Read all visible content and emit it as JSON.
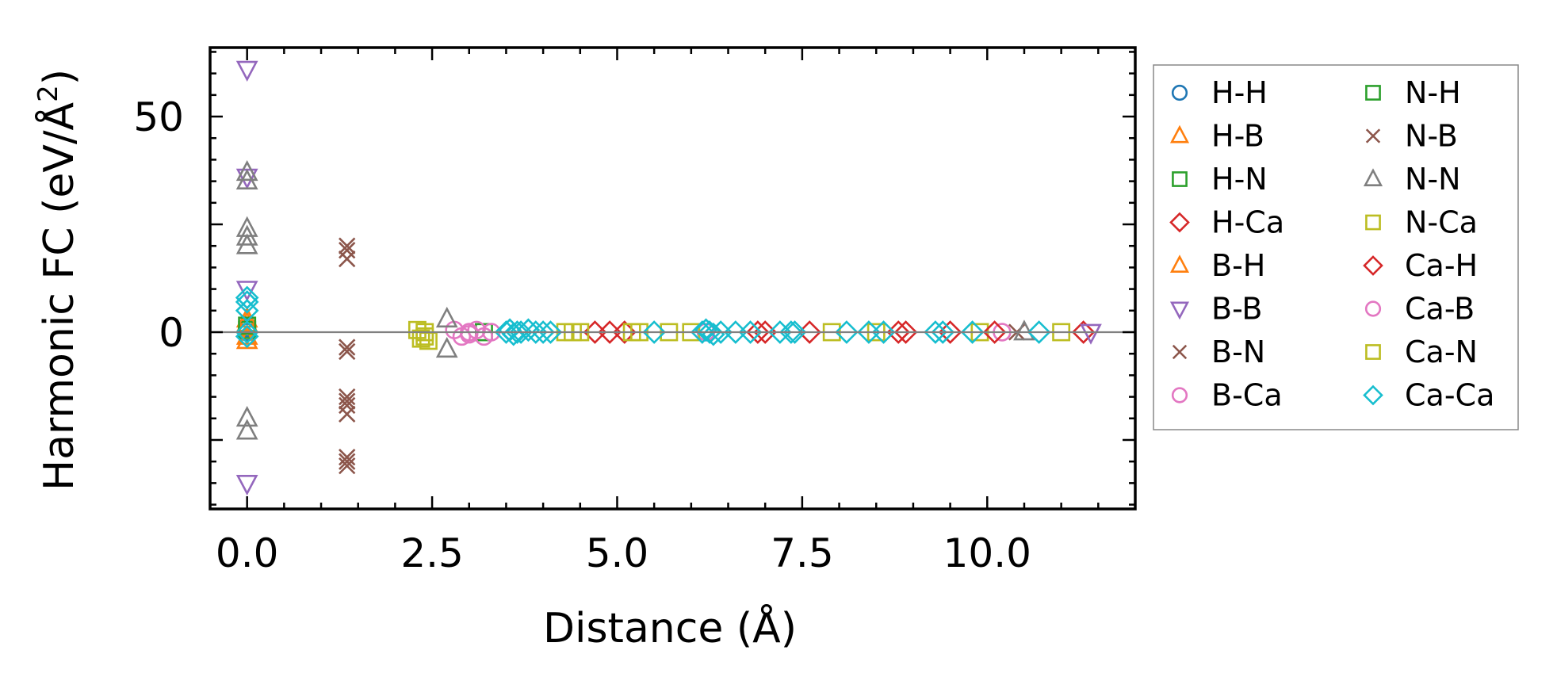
{
  "chart_data": {
    "type": "scatter",
    "title": "",
    "xlabel": "Distance (Å)",
    "ylabel_main": "Harmonic FC (eV/Å",
    "ylabel_sup": "2",
    "ylabel_close": ")",
    "xlim": [
      -0.5,
      12.0
    ],
    "ylim": [
      -41,
      66
    ],
    "x_ticks": [
      0.0,
      2.5,
      5.0,
      7.5,
      10.0
    ],
    "x_tick_labels": [
      "0.0",
      "2.5",
      "5.0",
      "7.5",
      "10.0"
    ],
    "y_ticks": [
      0,
      50
    ],
    "y_tick_labels": [
      "0",
      "50"
    ],
    "zero_line": true,
    "legend_position": "right",
    "series": [
      {
        "name": "H-H",
        "marker": "circle",
        "color": "#1f77b4",
        "points": [
          [
            0,
            0
          ],
          [
            0,
            1
          ]
        ]
      },
      {
        "name": "H-B",
        "marker": "triangle-up",
        "color": "#ff7f0e",
        "points": [
          [
            0,
            2
          ],
          [
            0,
            -1
          ]
        ]
      },
      {
        "name": "H-N",
        "marker": "square",
        "color": "#2ca02c",
        "points": [
          [
            0,
            0.5
          ],
          [
            3.2,
            0
          ]
        ]
      },
      {
        "name": "H-Ca",
        "marker": "diamond",
        "color": "#d62728",
        "points": [
          [
            4.7,
            0
          ],
          [
            5.1,
            0
          ],
          [
            7.0,
            0
          ],
          [
            7.6,
            0
          ],
          [
            8.8,
            0
          ],
          [
            9.5,
            0
          ],
          [
            11.3,
            0
          ]
        ]
      },
      {
        "name": "B-H",
        "marker": "triangle-up",
        "color": "#ff7f0e",
        "points": [
          [
            0,
            3
          ],
          [
            0,
            -2
          ]
        ]
      },
      {
        "name": "B-B",
        "marker": "triangle-down",
        "color": "#9467bd",
        "points": [
          [
            0,
            61
          ],
          [
            0,
            36
          ],
          [
            0,
            10
          ],
          [
            0,
            -35
          ],
          [
            11.4,
            0
          ]
        ]
      },
      {
        "name": "B-N",
        "marker": "x",
        "color": "#8c564b",
        "points": [
          [
            1.35,
            20
          ],
          [
            1.35,
            17
          ],
          [
            1.35,
            -3.5
          ],
          [
            1.35,
            -4.5
          ],
          [
            1.35,
            -15
          ],
          [
            1.35,
            -17
          ],
          [
            1.35,
            -19
          ],
          [
            1.35,
            -29
          ],
          [
            1.35,
            -31
          ],
          [
            10.4,
            0
          ]
        ]
      },
      {
        "name": "B-Ca",
        "marker": "circle",
        "color": "#e377c2",
        "points": [
          [
            2.8,
            0.5
          ],
          [
            2.9,
            -1
          ],
          [
            3.0,
            0
          ],
          [
            3.1,
            0.5
          ],
          [
            3.2,
            -1
          ],
          [
            6.2,
            0
          ],
          [
            10.2,
            0
          ]
        ]
      },
      {
        "name": "N-H",
        "marker": "square",
        "color": "#2ca02c",
        "points": [
          [
            0,
            1.5
          ]
        ]
      },
      {
        "name": "N-B",
        "marker": "x",
        "color": "#8c564b",
        "points": [
          [
            1.35,
            19
          ],
          [
            1.35,
            -16
          ],
          [
            1.35,
            -30
          ]
        ]
      },
      {
        "name": "N-N",
        "marker": "triangle-up",
        "color": "#7f7f7f",
        "points": [
          [
            0,
            37
          ],
          [
            0,
            35
          ],
          [
            0,
            24
          ],
          [
            0,
            22
          ],
          [
            0,
            20
          ],
          [
            0,
            -20
          ],
          [
            0,
            -23
          ],
          [
            2.7,
            3
          ],
          [
            2.7,
            -4
          ],
          [
            10.5,
            0
          ]
        ]
      },
      {
        "name": "N-Ca",
        "marker": "square",
        "color": "#bcbd22",
        "points": [
          [
            2.3,
            0.5
          ],
          [
            2.35,
            -1.5
          ],
          [
            2.4,
            0
          ],
          [
            2.45,
            -2
          ],
          [
            4.3,
            0
          ],
          [
            4.4,
            0
          ],
          [
            5.2,
            0
          ],
          [
            5.3,
            0
          ],
          [
            5.7,
            0
          ],
          [
            6.0,
            0
          ],
          [
            7.9,
            0
          ],
          [
            8.5,
            0
          ],
          [
            9.9,
            0
          ],
          [
            11.0,
            0
          ]
        ]
      },
      {
        "name": "Ca-H",
        "marker": "diamond",
        "color": "#d62728",
        "points": [
          [
            4.9,
            0
          ],
          [
            6.9,
            0
          ],
          [
            8.9,
            0
          ],
          [
            10.1,
            0
          ]
        ]
      },
      {
        "name": "Ca-B",
        "marker": "circle",
        "color": "#e377c2",
        "points": [
          [
            3.0,
            -0.5
          ],
          [
            3.3,
            0
          ]
        ]
      },
      {
        "name": "Ca-N",
        "marker": "square",
        "color": "#bcbd22",
        "points": [
          [
            2.4,
            -1
          ],
          [
            4.5,
            0
          ]
        ]
      },
      {
        "name": "Ca-Ca",
        "marker": "diamond",
        "color": "#17becf",
        "points": [
          [
            0,
            8
          ],
          [
            0,
            7
          ],
          [
            0,
            5
          ],
          [
            0,
            0
          ],
          [
            0,
            -1
          ],
          [
            3.5,
            0
          ],
          [
            3.55,
            0.5
          ],
          [
            3.6,
            -0.5
          ],
          [
            3.65,
            0
          ],
          [
            3.7,
            0
          ],
          [
            3.8,
            0.5
          ],
          [
            3.9,
            0
          ],
          [
            4.0,
            0
          ],
          [
            4.1,
            0
          ],
          [
            5.5,
            0
          ],
          [
            6.15,
            0
          ],
          [
            6.2,
            0.5
          ],
          [
            6.25,
            0
          ],
          [
            6.3,
            -0.5
          ],
          [
            6.4,
            0
          ],
          [
            6.6,
            0
          ],
          [
            6.8,
            0
          ],
          [
            7.2,
            0
          ],
          [
            7.35,
            0
          ],
          [
            7.4,
            0
          ],
          [
            8.1,
            0
          ],
          [
            8.4,
            0
          ],
          [
            8.6,
            0
          ],
          [
            9.3,
            0
          ],
          [
            9.4,
            0
          ],
          [
            9.8,
            0
          ],
          [
            10.7,
            0
          ]
        ]
      }
    ]
  }
}
